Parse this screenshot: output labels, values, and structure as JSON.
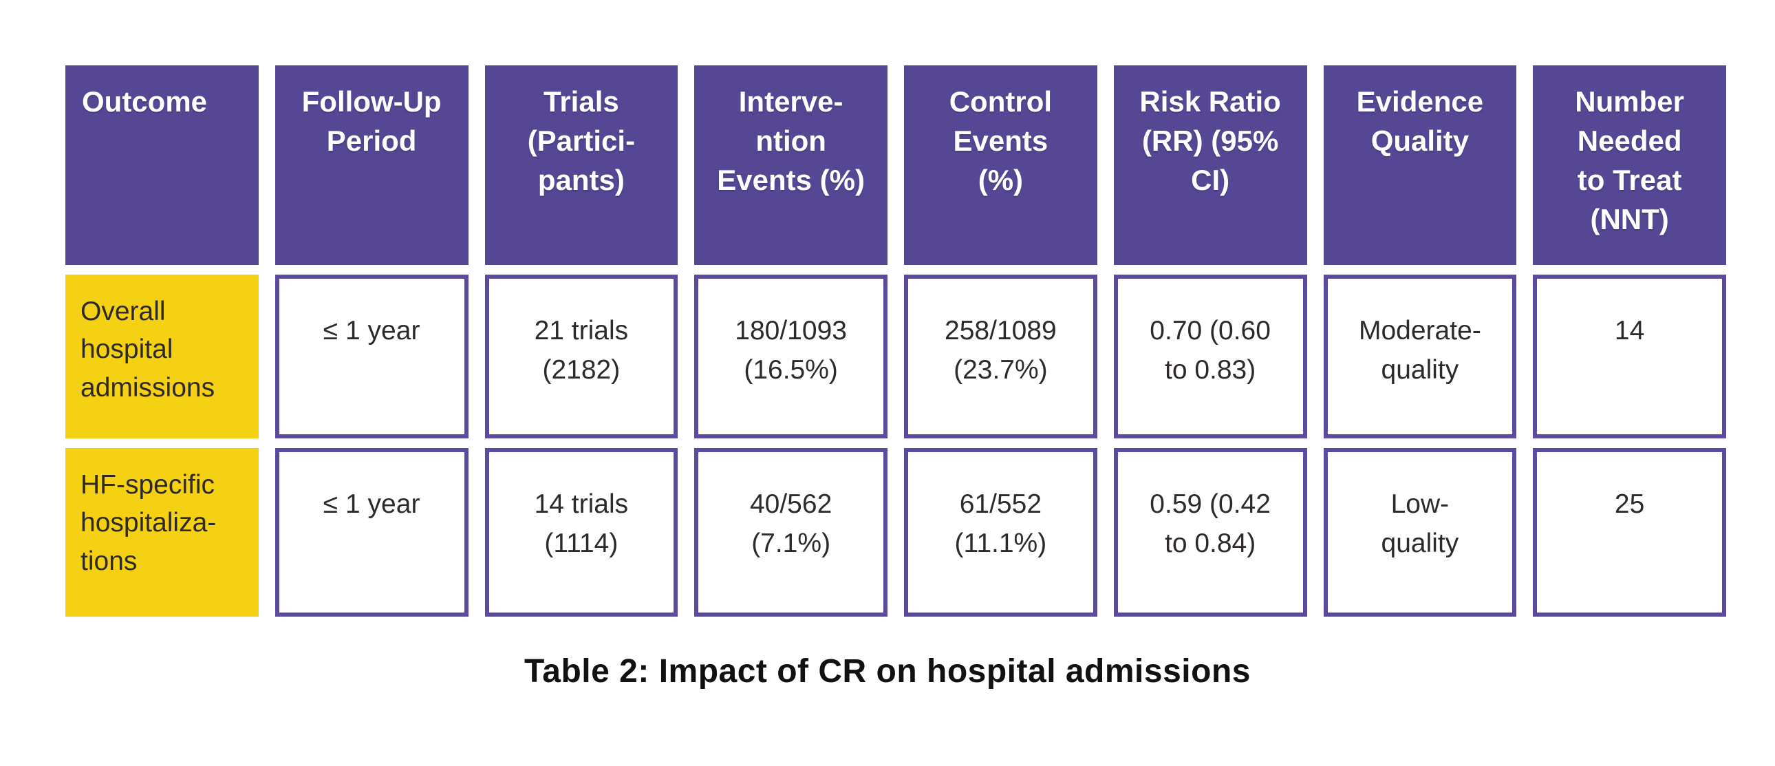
{
  "caption": "Table 2: Impact of CR on hospital admissions",
  "table": {
    "headers": [
      "Outcome",
      "Follow-Up\nPeriod",
      "Trials\n(Partici-\npants)",
      "Interve-\nntion\nEvents (%)",
      "Control\nEvents\n(%)",
      "Risk Ratio\n(RR) (95%\nCI)",
      "Evidence\nQuality",
      "Number\nNeeded\nto Treat\n(NNT)"
    ],
    "rows_display": [
      [
        "Overall\nhospital\nadmissions",
        "≤ 1 year",
        "21 trials\n(2182)",
        "180/1093\n(16.5%)",
        "258/1089\n(23.7%)",
        "0.70 (0.60\nto 0.83)",
        "Moderate-\nquality",
        "14"
      ],
      [
        "HF-specific\nhospitaliza-\ntions",
        "≤ 1 year",
        "14 trials\n(1114)",
        "40/562\n(7.1%)",
        "61/552\n(11.1%)",
        "0.59 (0.42\nto 0.84)",
        "Low-\nquality",
        "25"
      ]
    ]
  },
  "chart_data": {
    "type": "table",
    "title": "Table 2: Impact of CR on hospital admissions",
    "columns": [
      "Outcome",
      "Follow-Up Period",
      "Trials (Participants)",
      "Intervention Events (%)",
      "Control Events (%)",
      "Risk Ratio (RR) (95% CI)",
      "Evidence Quality",
      "Number Needed to Treat (NNT)"
    ],
    "rows": [
      [
        "Overall hospital admissions",
        "≤ 1 year",
        "21 trials (2182)",
        "180/1093 (16.5%)",
        "258/1089 (23.7%)",
        "0.70 (0.60 to 0.83)",
        "Moderate-quality",
        "14"
      ],
      [
        "HF-specific hospitalizations",
        "≤ 1 year",
        "14 trials (1114)",
        "40/562 (7.1%)",
        "61/552 (11.1%)",
        "0.59 (0.42 to 0.84)",
        "Low-quality",
        "25"
      ]
    ]
  },
  "colors": {
    "header_bg": "#564795",
    "header_text": "#ffffff",
    "outcome_bg": "#f5d114",
    "cell_border": "#5b4aa0",
    "body_text": "#2e2a2b",
    "caption_text": "#111111"
  }
}
